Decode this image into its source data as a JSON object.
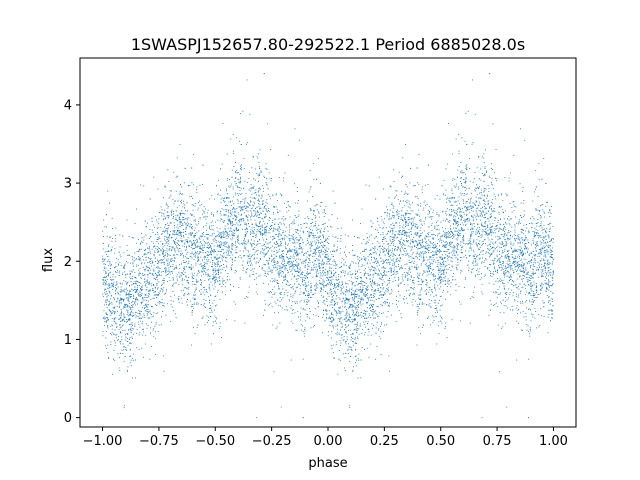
{
  "chart_data": {
    "type": "scatter",
    "title": "1SWASPJ152657.80-292522.1 Period 6885028.0s",
    "xlabel": "phase",
    "ylabel": "flux",
    "xlim": [
      -1.1,
      1.1
    ],
    "ylim": [
      -0.12,
      4.6
    ],
    "xticks": [
      -1.0,
      -0.75,
      -0.5,
      -0.25,
      0.0,
      0.25,
      0.5,
      0.75,
      1.0
    ],
    "xtick_labels": [
      "−1.00",
      "−0.75",
      "−0.50",
      "−0.25",
      "0.00",
      "0.25",
      "0.50",
      "0.75",
      "1.00"
    ],
    "yticks": [
      0,
      1,
      2,
      3,
      4
    ],
    "ytick_labels": [
      "0",
      "1",
      "2",
      "3",
      "4"
    ],
    "grid": false,
    "marker_color": "#1f77b4",
    "series": [
      {
        "phase_profile": {
          "phase": [
            0.0,
            0.05,
            0.1,
            0.15,
            0.2,
            0.25,
            0.3,
            0.35,
            0.4,
            0.45,
            0.5,
            0.55,
            0.6,
            0.65,
            0.7,
            0.75,
            0.8,
            0.85,
            0.9,
            0.95,
            1.0
          ],
          "flux": [
            1.8,
            1.5,
            1.35,
            1.6,
            1.8,
            1.9,
            2.2,
            2.3,
            2.1,
            2.0,
            2.0,
            2.3,
            2.6,
            2.4,
            2.5,
            2.2,
            2.1,
            2.0,
            1.9,
            2.1,
            1.8
          ]
        },
        "flux_range": [
          0.0,
          4.4
        ],
        "n_points": 9000
      }
    ]
  }
}
